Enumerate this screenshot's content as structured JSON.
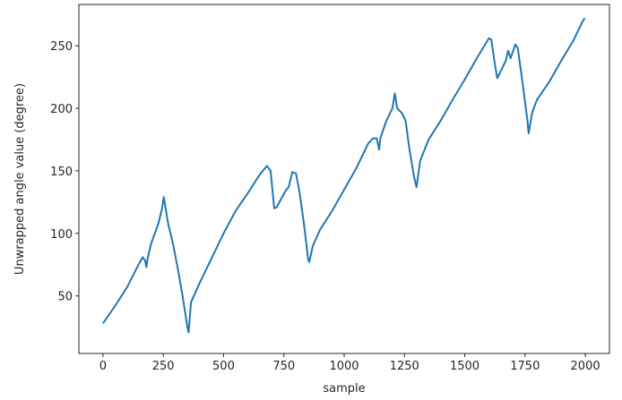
{
  "chart_data": {
    "type": "line",
    "xlabel": "sample",
    "ylabel": "Unwrapped angle value (degree)",
    "color": "#1f77b4",
    "grid": false,
    "xlim": [
      -100,
      2100
    ],
    "ylim": [
      4,
      283
    ],
    "xticks": [
      0,
      250,
      500,
      750,
      1000,
      1250,
      1500,
      1750,
      2000
    ],
    "yticks": [
      50,
      100,
      150,
      200,
      250
    ],
    "x": [
      0,
      50,
      100,
      150,
      165,
      175,
      180,
      185,
      200,
      215,
      230,
      245,
      252,
      258,
      270,
      290,
      310,
      330,
      350,
      355,
      365,
      400,
      450,
      500,
      550,
      600,
      650,
      680,
      695,
      710,
      720,
      740,
      760,
      770,
      785,
      800,
      815,
      835,
      850,
      855,
      870,
      900,
      950,
      1000,
      1050,
      1100,
      1120,
      1135,
      1145,
      1150,
      1175,
      1200,
      1210,
      1220,
      1240,
      1255,
      1270,
      1290,
      1300,
      1315,
      1350,
      1400,
      1450,
      1500,
      1550,
      1600,
      1610,
      1625,
      1635,
      1660,
      1670,
      1680,
      1690,
      1710,
      1720,
      1740,
      1760,
      1765,
      1780,
      1800,
      1850,
      1900,
      1950,
      1990,
      1998
    ],
    "values": [
      28,
      42,
      57,
      76,
      81,
      78,
      73,
      80,
      92,
      100,
      108,
      120,
      129,
      122,
      108,
      92,
      72,
      50,
      25,
      21,
      45,
      60,
      80,
      100,
      118,
      132,
      147,
      154,
      150,
      120,
      121,
      128,
      135,
      137,
      149,
      148,
      133,
      105,
      80,
      77,
      90,
      103,
      118,
      135,
      152,
      172,
      176,
      176,
      167,
      176,
      190,
      200,
      212,
      200,
      196,
      190,
      168,
      145,
      137,
      158,
      175,
      190,
      207,
      223,
      240,
      256,
      255,
      235,
      224,
      234,
      238,
      246,
      240,
      251,
      248,
      220,
      190,
      180,
      197,
      207,
      221,
      238,
      254,
      270,
      272
    ]
  }
}
